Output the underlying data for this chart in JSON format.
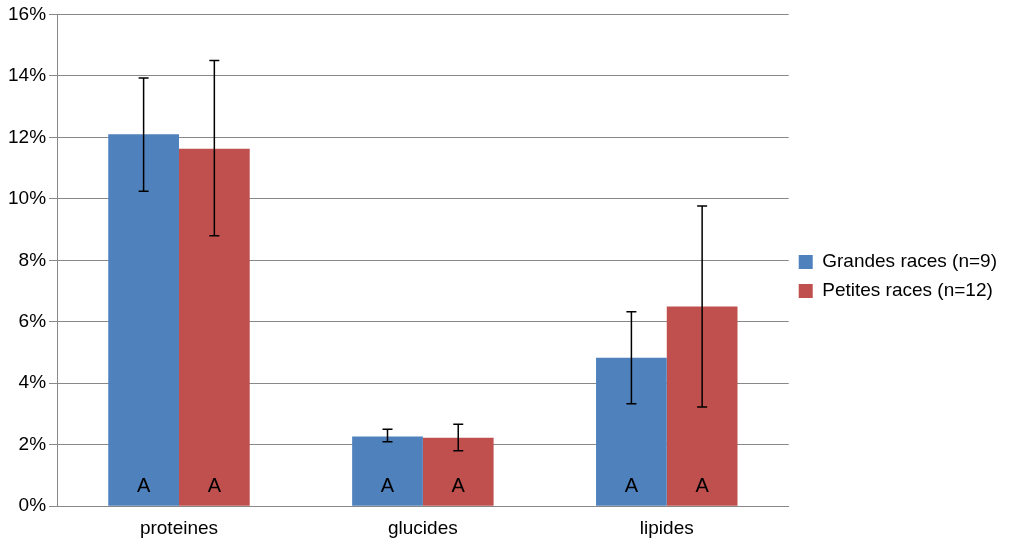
{
  "chart_data": {
    "type": "bar",
    "categories": [
      "proteines",
      "glucides",
      "lipides"
    ],
    "series": [
      {
        "name": "Grandes races (n=9)",
        "color": "#4f81bd",
        "values": [
          12.1,
          2.27,
          4.83
        ],
        "errors": [
          [
            10.25,
            13.93
          ],
          [
            2.1,
            2.5
          ],
          [
            3.33,
            6.33
          ]
        ],
        "value_labels": [
          "A",
          "A",
          "A"
        ]
      },
      {
        "name": "Petites races (n=12)",
        "color": "#c0504d",
        "values": [
          11.63,
          2.23,
          6.5
        ],
        "errors": [
          [
            8.8,
            14.5
          ],
          [
            1.8,
            2.67
          ],
          [
            3.23,
            9.77
          ]
        ],
        "value_labels": [
          "A",
          "A",
          "A"
        ]
      }
    ],
    "ylim": [
      0,
      16
    ],
    "yticks": [
      {
        "value": 0,
        "label": "0%"
      },
      {
        "value": 2,
        "label": "2%"
      },
      {
        "value": 4,
        "label": "4%"
      },
      {
        "value": 6,
        "label": "6%"
      },
      {
        "value": 8,
        "label": "8%"
      },
      {
        "value": 10,
        "label": "10%"
      },
      {
        "value": 12,
        "label": "12%"
      },
      {
        "value": 14,
        "label": "14%"
      },
      {
        "value": 16,
        "label": "16%"
      }
    ],
    "grid": "y",
    "legend": "right"
  }
}
